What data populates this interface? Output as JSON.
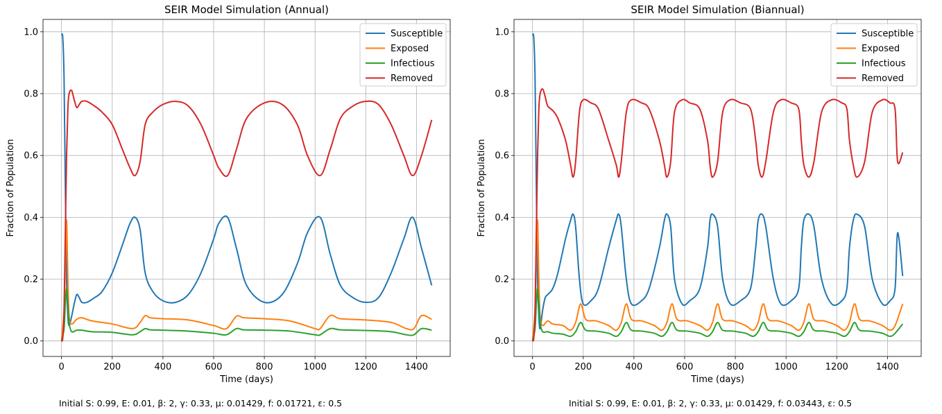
{
  "chart_data": [
    {
      "type": "line",
      "title": "SEIR Model Simulation (Annual)",
      "xlabel": "Time (days)",
      "ylabel": "Fraction of Population",
      "xlim": [
        -73,
        1533
      ],
      "ylim": [
        -0.05,
        1.04
      ],
      "xticks": [
        0,
        200,
        400,
        600,
        800,
        1000,
        1200,
        1400
      ],
      "yticks": [
        0.0,
        0.2,
        0.4,
        0.6,
        0.8,
        1.0
      ],
      "grid": true,
      "legend_position": "top-right",
      "caption": "Initial S: 0.99, E: 0.01, β: 2, γ: 0.33, μ: 0.01429, f: 0.01721, ε: 0.5",
      "series": [
        {
          "name": "Susceptible",
          "color": "#1f77b4",
          "x": [
            0,
            5,
            10,
            15,
            20,
            25,
            30,
            40,
            50,
            60,
            70,
            80,
            100,
            130,
            160,
            200,
            240,
            270,
            290,
            310,
            330,
            360,
            400,
            450,
            500,
            550,
            600,
            620,
            655,
            690,
            730,
            800,
            870,
            930,
            970,
            1020,
            1060,
            1100,
            1150,
            1200,
            1250,
            1300,
            1350,
            1385,
            1420,
            1460
          ],
          "y": [
            0.99,
            0.98,
            0.85,
            0.5,
            0.2,
            0.08,
            0.05,
            0.08,
            0.12,
            0.15,
            0.14,
            0.125,
            0.125,
            0.14,
            0.16,
            0.22,
            0.31,
            0.38,
            0.4,
            0.36,
            0.22,
            0.16,
            0.13,
            0.125,
            0.15,
            0.22,
            0.33,
            0.38,
            0.4,
            0.3,
            0.18,
            0.125,
            0.15,
            0.25,
            0.35,
            0.4,
            0.28,
            0.18,
            0.14,
            0.125,
            0.14,
            0.22,
            0.33,
            0.4,
            0.3,
            0.18
          ]
        },
        {
          "name": "Exposed",
          "color": "#ff7f0e",
          "x": [
            0,
            10,
            15,
            20,
            25,
            30,
            40,
            60,
            80,
            120,
            200,
            280,
            310,
            330,
            350,
            400,
            500,
            600,
            650,
            690,
            720,
            800,
            900,
            1000,
            1020,
            1060,
            1100,
            1200,
            1300,
            1360,
            1390,
            1420,
            1460
          ],
          "y": [
            0.0,
            0.1,
            0.25,
            0.39,
            0.2,
            0.08,
            0.055,
            0.07,
            0.075,
            0.065,
            0.055,
            0.04,
            0.06,
            0.082,
            0.075,
            0.072,
            0.068,
            0.05,
            0.04,
            0.08,
            0.075,
            0.072,
            0.065,
            0.04,
            0.04,
            0.082,
            0.072,
            0.068,
            0.06,
            0.04,
            0.04,
            0.082,
            0.07
          ]
        },
        {
          "name": "Infectious",
          "color": "#2ca02c",
          "x": [
            0,
            10,
            15,
            20,
            25,
            30,
            40,
            60,
            80,
            120,
            200,
            280,
            310,
            330,
            350,
            400,
            500,
            600,
            650,
            690,
            720,
            800,
            900,
            1000,
            1020,
            1060,
            1100,
            1200,
            1300,
            1360,
            1390,
            1420,
            1460
          ],
          "y": [
            0.0,
            0.04,
            0.12,
            0.17,
            0.12,
            0.06,
            0.03,
            0.035,
            0.035,
            0.03,
            0.028,
            0.02,
            0.03,
            0.04,
            0.036,
            0.035,
            0.032,
            0.025,
            0.02,
            0.04,
            0.036,
            0.035,
            0.032,
            0.02,
            0.02,
            0.04,
            0.036,
            0.034,
            0.03,
            0.02,
            0.02,
            0.04,
            0.035
          ]
        },
        {
          "name": "Removed",
          "color": "#d62728",
          "x": [
            0,
            5,
            10,
            15,
            20,
            25,
            30,
            40,
            50,
            60,
            70,
            80,
            100,
            130,
            160,
            200,
            240,
            270,
            290,
            310,
            330,
            360,
            400,
            450,
            500,
            550,
            600,
            620,
            655,
            690,
            730,
            800,
            870,
            930,
            970,
            1020,
            1060,
            1100,
            1150,
            1200,
            1250,
            1300,
            1350,
            1385,
            1420,
            1460
          ],
          "y": [
            0.0,
            0.01,
            0.1,
            0.35,
            0.6,
            0.75,
            0.8,
            0.81,
            0.78,
            0.755,
            0.765,
            0.775,
            0.775,
            0.76,
            0.74,
            0.7,
            0.62,
            0.56,
            0.535,
            0.58,
            0.7,
            0.74,
            0.765,
            0.775,
            0.76,
            0.7,
            0.6,
            0.56,
            0.535,
            0.62,
            0.72,
            0.77,
            0.765,
            0.7,
            0.6,
            0.535,
            0.62,
            0.72,
            0.76,
            0.775,
            0.765,
            0.7,
            0.6,
            0.535,
            0.6,
            0.715
          ]
        }
      ]
    },
    {
      "type": "line",
      "title": "SEIR Model Simulation (Biannual)",
      "xlabel": "Time (days)",
      "ylabel": "Fraction of Population",
      "xlim": [
        -73,
        1533
      ],
      "ylim": [
        -0.05,
        1.04
      ],
      "xticks": [
        0,
        200,
        400,
        600,
        800,
        1000,
        1200,
        1400
      ],
      "yticks": [
        0.0,
        0.2,
        0.4,
        0.6,
        0.8,
        1.0
      ],
      "grid": true,
      "legend_position": "top-right",
      "caption": "Initial S: 0.99, E: 0.01, β: 2, γ: 0.33, μ: 0.01429, f: 0.03443, ε: 0.5",
      "series": [
        {
          "name": "Susceptible",
          "color": "#1f77b4",
          "x": [
            0,
            5,
            10,
            15,
            20,
            25,
            30,
            40,
            50,
            60,
            80,
            100,
            130,
            150,
            160,
            170,
            185,
            200,
            230,
            260,
            300,
            330,
            340,
            350,
            370,
            390,
            430,
            460,
            500,
            520,
            530,
            545,
            560,
            590,
            620,
            660,
            690,
            700,
            710,
            730,
            750,
            780,
            820,
            860,
            880,
            890,
            905,
            920,
            950,
            980,
            1020,
            1050,
            1060,
            1070,
            1090,
            1110,
            1140,
            1180,
            1220,
            1240,
            1250,
            1265,
            1280,
            1310,
            1340,
            1380,
            1410,
            1430,
            1440,
            1460
          ],
          "y": [
            0.99,
            0.98,
            0.85,
            0.5,
            0.2,
            0.08,
            0.04,
            0.1,
            0.14,
            0.15,
            0.17,
            0.22,
            0.33,
            0.39,
            0.41,
            0.37,
            0.2,
            0.12,
            0.13,
            0.17,
            0.3,
            0.39,
            0.41,
            0.37,
            0.2,
            0.12,
            0.13,
            0.17,
            0.3,
            0.39,
            0.41,
            0.37,
            0.2,
            0.12,
            0.13,
            0.17,
            0.3,
            0.39,
            0.41,
            0.37,
            0.2,
            0.12,
            0.13,
            0.17,
            0.3,
            0.39,
            0.41,
            0.37,
            0.2,
            0.12,
            0.13,
            0.17,
            0.3,
            0.39,
            0.41,
            0.37,
            0.2,
            0.12,
            0.13,
            0.17,
            0.3,
            0.39,
            0.41,
            0.37,
            0.2,
            0.12,
            0.13,
            0.17,
            0.35,
            0.21
          ]
        },
        {
          "name": "Exposed",
          "color": "#ff7f0e",
          "x": [
            0,
            10,
            15,
            20,
            25,
            30,
            40,
            60,
            80,
            120,
            150,
            170,
            190,
            210,
            250,
            300,
            330,
            350,
            370,
            390,
            430,
            480,
            510,
            530,
            550,
            570,
            610,
            660,
            690,
            710,
            730,
            750,
            790,
            840,
            870,
            890,
            910,
            930,
            970,
            1020,
            1050,
            1070,
            1090,
            1110,
            1150,
            1200,
            1230,
            1250,
            1270,
            1290,
            1330,
            1380,
            1410,
            1430,
            1460
          ],
          "y": [
            0.0,
            0.1,
            0.25,
            0.39,
            0.2,
            0.08,
            0.05,
            0.065,
            0.055,
            0.05,
            0.035,
            0.06,
            0.12,
            0.07,
            0.065,
            0.05,
            0.035,
            0.06,
            0.12,
            0.07,
            0.065,
            0.05,
            0.035,
            0.06,
            0.12,
            0.07,
            0.065,
            0.05,
            0.035,
            0.06,
            0.12,
            0.07,
            0.065,
            0.05,
            0.035,
            0.06,
            0.12,
            0.07,
            0.065,
            0.05,
            0.035,
            0.06,
            0.12,
            0.07,
            0.065,
            0.05,
            0.035,
            0.06,
            0.12,
            0.07,
            0.065,
            0.05,
            0.035,
            0.05,
            0.12
          ]
        },
        {
          "name": "Infectious",
          "color": "#2ca02c",
          "x": [
            0,
            10,
            15,
            20,
            25,
            30,
            40,
            60,
            80,
            120,
            150,
            170,
            190,
            210,
            250,
            300,
            330,
            350,
            370,
            390,
            430,
            480,
            510,
            530,
            550,
            570,
            610,
            660,
            690,
            710,
            730,
            750,
            790,
            840,
            870,
            890,
            910,
            930,
            970,
            1020,
            1050,
            1070,
            1090,
            1110,
            1150,
            1200,
            1230,
            1250,
            1270,
            1290,
            1330,
            1380,
            1410,
            1430,
            1460
          ],
          "y": [
            0.0,
            0.04,
            0.12,
            0.17,
            0.12,
            0.06,
            0.03,
            0.03,
            0.025,
            0.022,
            0.015,
            0.03,
            0.06,
            0.035,
            0.032,
            0.025,
            0.015,
            0.03,
            0.06,
            0.035,
            0.032,
            0.025,
            0.015,
            0.03,
            0.06,
            0.035,
            0.032,
            0.025,
            0.015,
            0.03,
            0.06,
            0.035,
            0.032,
            0.025,
            0.015,
            0.03,
            0.06,
            0.035,
            0.032,
            0.025,
            0.015,
            0.03,
            0.06,
            0.035,
            0.032,
            0.025,
            0.015,
            0.03,
            0.06,
            0.035,
            0.032,
            0.025,
            0.015,
            0.025,
            0.055
          ]
        },
        {
          "name": "Removed",
          "color": "#d62728",
          "x": [
            0,
            5,
            10,
            15,
            20,
            25,
            30,
            40,
            50,
            60,
            80,
            100,
            130,
            150,
            160,
            170,
            185,
            200,
            230,
            260,
            300,
            330,
            340,
            350,
            370,
            390,
            430,
            460,
            500,
            520,
            530,
            545,
            560,
            590,
            620,
            660,
            690,
            700,
            710,
            730,
            750,
            780,
            820,
            860,
            880,
            890,
            905,
            920,
            950,
            980,
            1020,
            1050,
            1060,
            1070,
            1090,
            1110,
            1140,
            1180,
            1220,
            1240,
            1250,
            1265,
            1280,
            1310,
            1340,
            1380,
            1410,
            1430,
            1440,
            1460
          ],
          "y": [
            0.0,
            0.01,
            0.1,
            0.35,
            0.6,
            0.75,
            0.8,
            0.815,
            0.79,
            0.76,
            0.745,
            0.72,
            0.65,
            0.57,
            0.53,
            0.58,
            0.74,
            0.78,
            0.77,
            0.75,
            0.65,
            0.57,
            0.53,
            0.58,
            0.74,
            0.78,
            0.77,
            0.75,
            0.65,
            0.57,
            0.53,
            0.58,
            0.74,
            0.78,
            0.77,
            0.75,
            0.65,
            0.57,
            0.53,
            0.58,
            0.74,
            0.78,
            0.77,
            0.75,
            0.65,
            0.57,
            0.53,
            0.58,
            0.74,
            0.78,
            0.77,
            0.75,
            0.65,
            0.57,
            0.53,
            0.58,
            0.74,
            0.78,
            0.77,
            0.75,
            0.65,
            0.57,
            0.53,
            0.58,
            0.74,
            0.78,
            0.77,
            0.75,
            0.58,
            0.61
          ]
        }
      ]
    }
  ]
}
